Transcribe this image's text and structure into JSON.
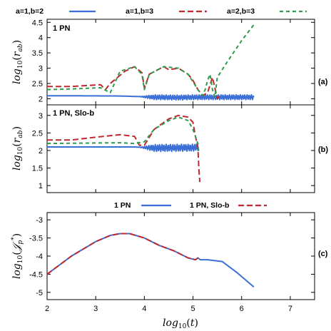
{
  "chart_data": [
    {
      "type": "line",
      "panel_label": "(a)",
      "annotation": "1 PN",
      "ylabel": "log10(r_ab)",
      "xlim": [
        2,
        7.5
      ],
      "ylim": [
        1.8,
        4.6
      ],
      "yticks": [
        "2",
        "2.5",
        "3",
        "3.5",
        "4",
        "4.5"
      ],
      "grid": false,
      "legend_position": "top",
      "series": [
        {
          "name": "a=1,b=2",
          "color": "#3b6fd6",
          "style": "solid",
          "points": [
            [
              2.0,
              2.1
            ],
            [
              3.5,
              2.09
            ],
            [
              3.9,
              2.07
            ],
            [
              4.2,
              2.05
            ],
            [
              4.7,
              2.04
            ],
            [
              5.0,
              2.05
            ],
            [
              6.25,
              2.05
            ]
          ],
          "oscillation": {
            "from": 3.9,
            "amplitude": 0.08
          }
        },
        {
          "name": "a=1,b=3",
          "color": "#c0282d",
          "style": "dashed",
          "points": [
            [
              2.0,
              2.4
            ],
            [
              2.5,
              2.4
            ],
            [
              3.1,
              2.46
            ],
            [
              3.2,
              2.3
            ],
            [
              3.3,
              2.5
            ],
            [
              3.6,
              2.9
            ],
            [
              3.8,
              3.05
            ],
            [
              3.95,
              2.85
            ],
            [
              4.0,
              2.35
            ],
            [
              4.1,
              2.8
            ],
            [
              4.4,
              3.05
            ],
            [
              4.5,
              2.95
            ],
            [
              4.7,
              3.0
            ],
            [
              4.9,
              2.8
            ],
            [
              5.0,
              2.6
            ],
            [
              5.1,
              2.3
            ],
            [
              5.2,
              2.1
            ],
            [
              5.3,
              2.2
            ],
            [
              5.4,
              2.7
            ],
            [
              5.5,
              2.0
            ],
            [
              5.55,
              2.1
            ]
          ]
        },
        {
          "name": "a=2,b=3",
          "color": "#2e9a4c",
          "style": "dashed",
          "points": [
            [
              2.0,
              2.3
            ],
            [
              2.5,
              2.32
            ],
            [
              3.1,
              2.36
            ],
            [
              3.3,
              2.2
            ],
            [
              3.5,
              2.9
            ],
            [
              3.8,
              3.05
            ],
            [
              3.95,
              2.8
            ],
            [
              4.0,
              2.3
            ],
            [
              4.1,
              2.8
            ],
            [
              4.4,
              3.05
            ],
            [
              4.7,
              3.0
            ],
            [
              4.9,
              2.8
            ],
            [
              5.1,
              2.3
            ],
            [
              5.2,
              2.1
            ],
            [
              5.25,
              2.3
            ],
            [
              5.3,
              2.6
            ],
            [
              5.35,
              2.8
            ],
            [
              5.4,
              2.3
            ],
            [
              5.45,
              2.05
            ],
            [
              5.5,
              2.7
            ],
            [
              5.7,
              3.2
            ],
            [
              6.0,
              3.9
            ],
            [
              6.25,
              4.42
            ]
          ]
        }
      ]
    },
    {
      "type": "line",
      "panel_label": "(b)",
      "annotation": "1 PN, Slo-b",
      "ylabel": "log10(r_ab)",
      "xlim": [
        2,
        7.5
      ],
      "ylim": [
        0.8,
        3.3
      ],
      "yticks": [
        "1",
        "1.5",
        "2",
        "2.5",
        "3"
      ],
      "grid": false,
      "series": [
        {
          "name": "a=1,b=2",
          "color": "#3b6fd6",
          "style": "solid",
          "points": [
            [
              2.0,
              2.1
            ],
            [
              3.8,
              2.1
            ],
            [
              4.2,
              2.07
            ],
            [
              5.0,
              2.08
            ],
            [
              5.1,
              2.1
            ],
            [
              5.12,
              2.0
            ]
          ],
          "oscillation": {
            "from": 3.9,
            "amplitude": 0.1
          }
        },
        {
          "name": "a=1,b=3",
          "color": "#c0282d",
          "style": "dashed",
          "points": [
            [
              2.0,
              2.3
            ],
            [
              2.5,
              2.3
            ],
            [
              3.0,
              2.38
            ],
            [
              3.5,
              2.45
            ],
            [
              3.8,
              2.4
            ],
            [
              3.9,
              2.15
            ],
            [
              4.0,
              2.15
            ],
            [
              4.2,
              2.6
            ],
            [
              4.5,
              2.9
            ],
            [
              4.7,
              3.0
            ],
            [
              4.9,
              2.95
            ],
            [
              5.0,
              2.8
            ],
            [
              5.05,
              2.4
            ],
            [
              5.1,
              2.1
            ],
            [
              5.12,
              1.5
            ],
            [
              5.14,
              1.1
            ]
          ]
        },
        {
          "name": "a=2,b=3",
          "color": "#2e9a4c",
          "style": "dashed",
          "points": [
            [
              2.0,
              2.2
            ],
            [
              3.5,
              2.22
            ],
            [
              3.8,
              2.2
            ],
            [
              4.0,
              2.25
            ],
            [
              4.2,
              2.6
            ],
            [
              4.5,
              2.85
            ],
            [
              4.7,
              2.95
            ],
            [
              4.9,
              2.85
            ],
            [
              5.0,
              2.6
            ],
            [
              5.1,
              2.2
            ],
            [
              5.12,
              1.9
            ]
          ]
        }
      ]
    },
    {
      "type": "line",
      "panel_label": "(c)",
      "ylabel": "log10(J*_p)",
      "xlabel": "log10(t)",
      "xlim": [
        2,
        7.5
      ],
      "ylim": [
        -5.2,
        -2.8
      ],
      "yticks": [
        "-5",
        "-4.5",
        "-4",
        "-3.5",
        "-3"
      ],
      "xticks": [
        "2",
        "3",
        "4",
        "5",
        "6",
        "7"
      ],
      "grid": false,
      "legend_position": "top",
      "series": [
        {
          "name": "1 PN",
          "color": "#3b6fd6",
          "style": "solid",
          "points": [
            [
              2.0,
              -4.5
            ],
            [
              2.5,
              -4.0
            ],
            [
              3.0,
              -3.6
            ],
            [
              3.3,
              -3.43
            ],
            [
              3.5,
              -3.38
            ],
            [
              3.7,
              -3.38
            ],
            [
              4.0,
              -3.5
            ],
            [
              4.3,
              -3.7
            ],
            [
              4.6,
              -3.85
            ],
            [
              4.9,
              -4.05
            ],
            [
              5.05,
              -4.1
            ],
            [
              5.1,
              -4.05
            ],
            [
              5.15,
              -4.1
            ],
            [
              5.3,
              -4.1
            ],
            [
              5.6,
              -4.15
            ],
            [
              5.9,
              -4.45
            ],
            [
              6.25,
              -4.85
            ]
          ]
        },
        {
          "name": "1 PN, Slo-b",
          "color": "#c0282d",
          "style": "dashed",
          "points": [
            [
              2.0,
              -4.5
            ],
            [
              2.5,
              -4.0
            ],
            [
              3.0,
              -3.6
            ],
            [
              3.3,
              -3.43
            ],
            [
              3.5,
              -3.38
            ],
            [
              3.7,
              -3.38
            ],
            [
              4.0,
              -3.5
            ],
            [
              4.3,
              -3.7
            ],
            [
              4.6,
              -3.85
            ],
            [
              4.9,
              -4.05
            ],
            [
              5.05,
              -4.1
            ],
            [
              5.1,
              -4.05
            ],
            [
              5.12,
              -4.1
            ]
          ]
        }
      ]
    }
  ]
}
